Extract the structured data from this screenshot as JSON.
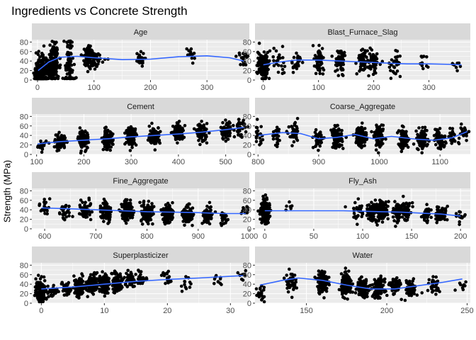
{
  "chart_data": {
    "type": "scatter",
    "title": "Ingredients vs Concrete Strength",
    "ylabel": "Strength (MPa)",
    "xlabel": "",
    "grid": true,
    "colors": {
      "panel_bg": "#ebebeb",
      "strip_bg": "#d9d9d9",
      "grid": "#ffffff",
      "points": "#000000",
      "smooth": "#3366ff"
    },
    "ylim": [
      0,
      85
    ],
    "yticks": [
      0,
      20,
      40,
      60,
      80
    ],
    "panels": [
      {
        "name": "Age",
        "xlim": [
          -10,
          375
        ],
        "xticks": [
          0,
          100,
          200,
          300
        ],
        "clusters": [
          [
            1,
            2,
            12,
            2
          ],
          [
            3,
            5,
            40,
            130
          ],
          [
            7,
            8,
            25,
            126
          ],
          [
            14,
            15,
            42,
            62
          ],
          [
            28,
            30,
            40,
            425
          ],
          [
            56,
            28,
            56,
            91
          ],
          [
            90,
            52,
            20,
            54
          ],
          [
            91,
            50,
            20,
            22
          ],
          [
            100,
            44,
            18,
            52
          ],
          [
            120,
            40,
            6,
            3
          ],
          [
            180,
            43,
            12,
            26
          ],
          [
            270,
            52,
            15,
            13
          ],
          [
            360,
            48,
            10,
            6
          ],
          [
            365,
            43,
            12,
            14
          ]
        ],
        "smooth": [
          [
            1,
            20
          ],
          [
            20,
            38
          ],
          [
            40,
            48
          ],
          [
            70,
            50
          ],
          [
            100,
            47
          ],
          [
            150,
            43
          ],
          [
            200,
            44
          ],
          [
            250,
            49
          ],
          [
            300,
            51
          ],
          [
            340,
            47
          ],
          [
            365,
            40
          ]
        ]
      },
      {
        "name": "Blast_Furnace_Slag",
        "xlim": [
          -15,
          375
        ],
        "xticks": [
          0,
          100,
          200,
          300
        ],
        "clusters": [
          [
            0,
            31,
            22,
            471
          ],
          [
            20,
            40,
            22,
            8
          ],
          [
            30,
            38,
            22,
            15
          ],
          [
            60,
            38,
            22,
            25
          ],
          [
            100,
            40,
            22,
            60
          ],
          [
            140,
            38,
            22,
            60
          ],
          [
            180,
            40,
            22,
            60
          ],
          [
            200,
            40,
            22,
            50
          ],
          [
            240,
            35,
            22,
            30
          ],
          [
            290,
            30,
            20,
            12
          ],
          [
            350,
            32,
            15,
            8
          ]
        ],
        "smooth": [
          [
            0,
            32
          ],
          [
            30,
            38
          ],
          [
            60,
            42
          ],
          [
            100,
            42
          ],
          [
            140,
            40
          ],
          [
            180,
            38
          ],
          [
            220,
            36
          ],
          [
            260,
            34
          ],
          [
            300,
            34
          ],
          [
            340,
            33
          ],
          [
            359,
            32
          ]
        ]
      },
      {
        "name": "Cement",
        "xlim": [
          90,
          550
        ],
        "xticks": [
          100,
          200,
          300,
          400,
          500
        ],
        "clusters": [
          [
            110,
            18,
            10,
            20
          ],
          [
            150,
            25,
            12,
            90
          ],
          [
            200,
            30,
            15,
            110
          ],
          [
            250,
            32,
            15,
            110
          ],
          [
            300,
            38,
            15,
            130
          ],
          [
            350,
            40,
            15,
            100
          ],
          [
            400,
            45,
            15,
            100
          ],
          [
            450,
            46,
            15,
            80
          ],
          [
            500,
            50,
            15,
            60
          ],
          [
            530,
            55,
            15,
            40
          ]
        ],
        "smooth": [
          [
            102,
            22
          ],
          [
            150,
            27
          ],
          [
            200,
            30
          ],
          [
            250,
            33
          ],
          [
            300,
            37
          ],
          [
            350,
            40
          ],
          [
            400,
            43
          ],
          [
            450,
            47
          ],
          [
            500,
            52
          ],
          [
            540,
            57
          ]
        ]
      },
      {
        "name": "Coarse_Aggregate",
        "xlim": [
          795,
          1150
        ],
        "xticks": [
          800,
          900,
          1000,
          1100
        ],
        "clusters": [
          [
            800,
            40,
            20,
            20
          ],
          [
            830,
            38,
            18,
            25
          ],
          [
            860,
            40,
            18,
            40
          ],
          [
            900,
            33,
            18,
            50
          ],
          [
            930,
            35,
            18,
            120
          ],
          [
            970,
            38,
            18,
            120
          ],
          [
            1000,
            35,
            18,
            80
          ],
          [
            1040,
            32,
            18,
            90
          ],
          [
            1070,
            32,
            18,
            90
          ],
          [
            1100,
            30,
            18,
            60
          ],
          [
            1120,
            35,
            18,
            30
          ],
          [
            1140,
            50,
            15,
            20
          ]
        ],
        "smooth": [
          [
            801,
            40
          ],
          [
            840,
            46
          ],
          [
            870,
            44
          ],
          [
            900,
            33
          ],
          [
            930,
            36
          ],
          [
            960,
            42
          ],
          [
            990,
            33
          ],
          [
            1020,
            38
          ],
          [
            1060,
            32
          ],
          [
            1090,
            30
          ],
          [
            1120,
            35
          ],
          [
            1145,
            48
          ]
        ]
      },
      {
        "name": "Fine_Aggregate",
        "xlim": [
          575,
          1000
        ],
        "xticks": [
          600,
          700,
          800,
          900,
          1000
        ],
        "clusters": [
          [
            600,
            45,
            15,
            20
          ],
          [
            640,
            38,
            15,
            30
          ],
          [
            680,
            40,
            15,
            70
          ],
          [
            720,
            35,
            15,
            100
          ],
          [
            760,
            38,
            15,
            200
          ],
          [
            800,
            33,
            15,
            250
          ],
          [
            840,
            33,
            15,
            130
          ],
          [
            880,
            30,
            15,
            100
          ],
          [
            920,
            30,
            15,
            50
          ],
          [
            950,
            20,
            12,
            20
          ],
          [
            990,
            40,
            15,
            10
          ]
        ],
        "smooth": [
          [
            594,
            44
          ],
          [
            650,
            42
          ],
          [
            700,
            40
          ],
          [
            750,
            38
          ],
          [
            800,
            36
          ],
          [
            850,
            35
          ],
          [
            900,
            34
          ],
          [
            950,
            32
          ],
          [
            993,
            32
          ]
        ]
      },
      {
        "name": "Fly_Ash",
        "xlim": [
          -10,
          210
        ],
        "xticks": [
          0,
          50,
          100,
          150,
          200
        ],
        "clusters": [
          [
            0,
            36,
            20,
            566
          ],
          [
            25,
            40,
            15,
            6
          ],
          [
            95,
            38,
            18,
            30
          ],
          [
            110,
            36,
            16,
            70
          ],
          [
            120,
            38,
            16,
            100
          ],
          [
            135,
            34,
            16,
            60
          ],
          [
            145,
            38,
            16,
            50
          ],
          [
            165,
            32,
            16,
            40
          ],
          [
            180,
            30,
            14,
            50
          ],
          [
            200,
            25,
            10,
            15
          ]
        ],
        "smooth": [
          [
            0,
            38
          ],
          [
            50,
            38
          ],
          [
            80,
            38
          ],
          [
            100,
            37
          ],
          [
            120,
            36
          ],
          [
            140,
            35
          ],
          [
            160,
            33
          ],
          [
            180,
            31
          ],
          [
            200,
            27
          ]
        ]
      },
      {
        "name": "Superplasticizer",
        "xlim": [
          -1.5,
          33
        ],
        "xticks": [
          0,
          10,
          20,
          30
        ],
        "clusters": [
          [
            0,
            28,
            18,
            379
          ],
          [
            2,
            25,
            15,
            20
          ],
          [
            4,
            30,
            15,
            50
          ],
          [
            6,
            35,
            15,
            90
          ],
          [
            8,
            38,
            15,
            120
          ],
          [
            10,
            42,
            16,
            130
          ],
          [
            12,
            45,
            15,
            100
          ],
          [
            14,
            48,
            15,
            50
          ],
          [
            16,
            48,
            15,
            30
          ],
          [
            20,
            52,
            15,
            20
          ],
          [
            23,
            40,
            15,
            12
          ],
          [
            28,
            45,
            15,
            10
          ],
          [
            32,
            55,
            12,
            8
          ]
        ],
        "smooth": [
          [
            0,
            30
          ],
          [
            5,
            34
          ],
          [
            10,
            40
          ],
          [
            15,
            46
          ],
          [
            20,
            50
          ],
          [
            25,
            53
          ],
          [
            32,
            58
          ]
        ]
      },
      {
        "name": "Water",
        "xlim": [
          118,
          252
        ],
        "xticks": [
          150,
          200,
          250
        ],
        "clusters": [
          [
            122,
            20,
            12,
            20
          ],
          [
            140,
            45,
            18,
            50
          ],
          [
            160,
            45,
            18,
            150
          ],
          [
            175,
            38,
            18,
            180
          ],
          [
            185,
            32,
            15,
            200
          ],
          [
            195,
            32,
            15,
            150
          ],
          [
            205,
            35,
            15,
            70
          ],
          [
            215,
            30,
            15,
            60
          ],
          [
            230,
            35,
            15,
            30
          ],
          [
            247,
            38,
            15,
            10
          ]
        ],
        "smooth": [
          [
            121,
            38
          ],
          [
            135,
            48
          ],
          [
            145,
            53
          ],
          [
            160,
            48
          ],
          [
            175,
            38
          ],
          [
            190,
            30
          ],
          [
            205,
            30
          ],
          [
            220,
            37
          ],
          [
            235,
            44
          ],
          [
            247,
            51
          ]
        ]
      }
    ]
  }
}
